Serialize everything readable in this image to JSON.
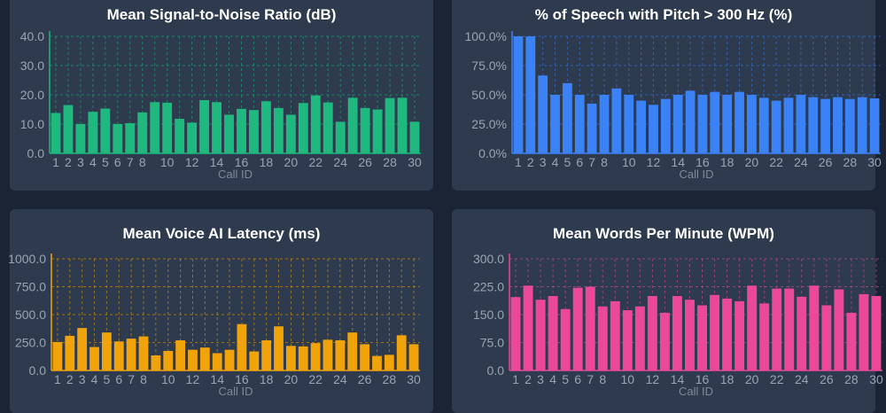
{
  "charts": [
    {
      "type": "bar",
      "title": "Mean Signal-to-Noise Ratio (dB)",
      "xlabel": "Call ID",
      "color": "#1fb87f",
      "ylim": [
        0,
        40
      ],
      "yticks": [
        "0.0",
        "10.0",
        "20.0",
        "30.0",
        "40.0"
      ],
      "ytick_values": [
        0,
        10,
        20,
        30,
        40
      ],
      "categories": [
        "1",
        "2",
        "3",
        "4",
        "5",
        "6",
        "7",
        "8",
        "9",
        "10",
        "11",
        "12",
        "13",
        "14",
        "15",
        "16",
        "17",
        "18",
        "19",
        "20",
        "21",
        "22",
        "23",
        "24",
        "25",
        "26",
        "27",
        "28",
        "29",
        "30"
      ],
      "xtick_labels": [
        "1",
        "2",
        "3",
        "4",
        "5",
        "6",
        "7",
        "8",
        "10",
        "12",
        "14",
        "16",
        "18",
        "20",
        "22",
        "24",
        "26",
        "28",
        "30"
      ],
      "values": [
        13.8,
        16.5,
        10.0,
        14.2,
        15.3,
        10.0,
        10.3,
        14.0,
        17.5,
        17.3,
        11.8,
        10.5,
        18.2,
        17.5,
        13.2,
        15.2,
        14.8,
        17.8,
        15.5,
        13.2,
        17.2,
        19.8,
        17.4,
        10.8,
        19.0,
        15.5,
        15.0,
        18.9,
        19.0,
        10.8
      ]
    },
    {
      "type": "bar",
      "title": "% of Speech with Pitch > 300 Hz (%)",
      "xlabel": "Call ID",
      "color": "#3b82f6",
      "ylim": [
        0,
        100
      ],
      "yticks": [
        "0.0%",
        "25.0%",
        "50.0%",
        "75.0%",
        "100.0%"
      ],
      "ytick_values": [
        0,
        25,
        50,
        75,
        100
      ],
      "categories": [
        "1",
        "2",
        "3",
        "4",
        "5",
        "6",
        "7",
        "8",
        "9",
        "10",
        "11",
        "12",
        "13",
        "14",
        "15",
        "16",
        "17",
        "18",
        "19",
        "20",
        "21",
        "22",
        "23",
        "24",
        "25",
        "26",
        "27",
        "28",
        "29",
        "30"
      ],
      "xtick_labels": [
        "1",
        "2",
        "3",
        "4",
        "5",
        "6",
        "7",
        "8",
        "10",
        "12",
        "14",
        "16",
        "18",
        "20",
        "22",
        "24",
        "26",
        "28",
        "30"
      ],
      "values": [
        100.0,
        100.0,
        66.5,
        50.0,
        60.0,
        50.0,
        42.5,
        50.0,
        55.5,
        50.0,
        45.0,
        41.5,
        46.5,
        50.0,
        53.5,
        50.0,
        52.5,
        50.0,
        52.5,
        50.0,
        47.5,
        45.0,
        47.5,
        50.0,
        48.0,
        46.5,
        48.0,
        46.5,
        48.0,
        47.0
      ]
    },
    {
      "type": "bar",
      "title": "Mean Voice AI Latency (ms)",
      "xlabel": "Call ID",
      "color": "#f0a30a",
      "ylim": [
        0,
        1000
      ],
      "yticks": [
        "0.0",
        "250.0",
        "500.0",
        "750.0",
        "1000.0"
      ],
      "ytick_values": [
        0,
        250,
        500,
        750,
        1000
      ],
      "categories": [
        "1",
        "2",
        "3",
        "4",
        "5",
        "6",
        "7",
        "8",
        "9",
        "10",
        "11",
        "12",
        "13",
        "14",
        "15",
        "16",
        "17",
        "18",
        "19",
        "20",
        "21",
        "22",
        "23",
        "24",
        "25",
        "26",
        "27",
        "28",
        "29",
        "30"
      ],
      "xtick_labels": [
        "1",
        "2",
        "3",
        "4",
        "5",
        "6",
        "7",
        "8",
        "10",
        "12",
        "14",
        "16",
        "18",
        "20",
        "22",
        "24",
        "26",
        "28",
        "30"
      ],
      "values": [
        255,
        310,
        380,
        210,
        340,
        260,
        285,
        305,
        135,
        175,
        270,
        185,
        205,
        155,
        185,
        415,
        170,
        270,
        395,
        220,
        215,
        245,
        275,
        270,
        340,
        235,
        130,
        140,
        315,
        235
      ]
    },
    {
      "type": "bar",
      "title": "Mean Words Per Minute (WPM)",
      "xlabel": "Call ID",
      "color": "#ec4899",
      "ylim": [
        0,
        300
      ],
      "yticks": [
        "0.0",
        "75.0",
        "150.0",
        "225.0",
        "300.0"
      ],
      "ytick_values": [
        0,
        75,
        150,
        225,
        300
      ],
      "categories": [
        "1",
        "2",
        "3",
        "4",
        "5",
        "6",
        "7",
        "8",
        "9",
        "10",
        "11",
        "12",
        "13",
        "14",
        "15",
        "16",
        "17",
        "18",
        "19",
        "20",
        "21",
        "22",
        "23",
        "24",
        "25",
        "26",
        "27",
        "28",
        "29",
        "30"
      ],
      "xtick_labels": [
        "1",
        "2",
        "3",
        "4",
        "5",
        "6",
        "7",
        "8",
        "10",
        "12",
        "14",
        "16",
        "18",
        "20",
        "22",
        "24",
        "26",
        "28",
        "30"
      ],
      "values": [
        197,
        228,
        190,
        200,
        165,
        222,
        225,
        172,
        186,
        162,
        172,
        200,
        155,
        200,
        190,
        175,
        203,
        193,
        186,
        228,
        180,
        220,
        220,
        198,
        228,
        175,
        218,
        155,
        205,
        200
      ]
    }
  ]
}
